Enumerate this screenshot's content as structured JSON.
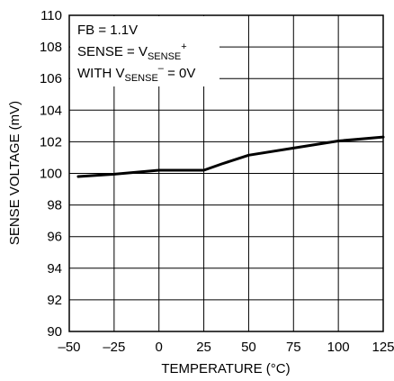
{
  "chart_data": {
    "type": "line",
    "xlabel": "TEMPERATURE (°C)",
    "ylabel": "SENSE VOLTAGE (mV)",
    "xlim": [
      -50,
      125
    ],
    "ylim": [
      90,
      110
    ],
    "xticks": [
      -50,
      -25,
      0,
      25,
      50,
      75,
      100,
      125
    ],
    "yticks": [
      90,
      92,
      94,
      96,
      98,
      100,
      102,
      104,
      106,
      108,
      110
    ],
    "xtick_labels": [
      "–50",
      "–25",
      "0",
      "25",
      "50",
      "75",
      "100",
      "125"
    ],
    "ytick_labels": [
      "90",
      "92",
      "94",
      "96",
      "98",
      "100",
      "102",
      "104",
      "106",
      "108",
      "110"
    ],
    "grid": true,
    "annotations": {
      "line1": "FB = 1.1V",
      "line2_main": "SENSE = V",
      "line2_sub": "SENSE",
      "line2_sup": "+",
      "line3_main": "WITH V",
      "line3_sub": "SENSE",
      "line3_sup": "–",
      "line3_tail": " = 0V"
    },
    "series": [
      {
        "x": [
          -45,
          -25,
          0,
          25,
          35,
          50,
          75,
          100,
          125
        ],
        "y": [
          99.8,
          99.95,
          100.2,
          100.2,
          100.6,
          101.15,
          101.6,
          102.05,
          102.3
        ]
      }
    ]
  }
}
